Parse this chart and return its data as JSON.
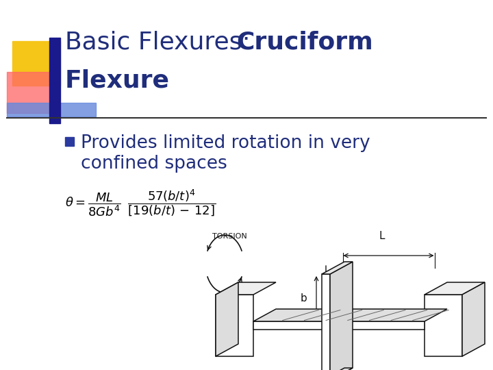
{
  "title_line1_normal": "Basic Flexures: ",
  "title_line1_bold": "Cruciform",
  "title_line2_bold": "Flexure",
  "title_color": "#1F2D7B",
  "title_fontsize": 26,
  "bullet_text_line1": "Provides limited rotation in very",
  "bullet_text_line2": "confined spaces",
  "bullet_color": "#1F2D7B",
  "bullet_fontsize": 19,
  "background_color": "#ffffff",
  "bullet_square_color": "#2B3A9F",
  "accent_yellow": "#F5C518",
  "accent_red": "#FF6666",
  "accent_blue_dark": "#1a1a8c",
  "accent_blue_light": "#6688dd",
  "line_color": "#999999",
  "diagram_color": "#111111"
}
